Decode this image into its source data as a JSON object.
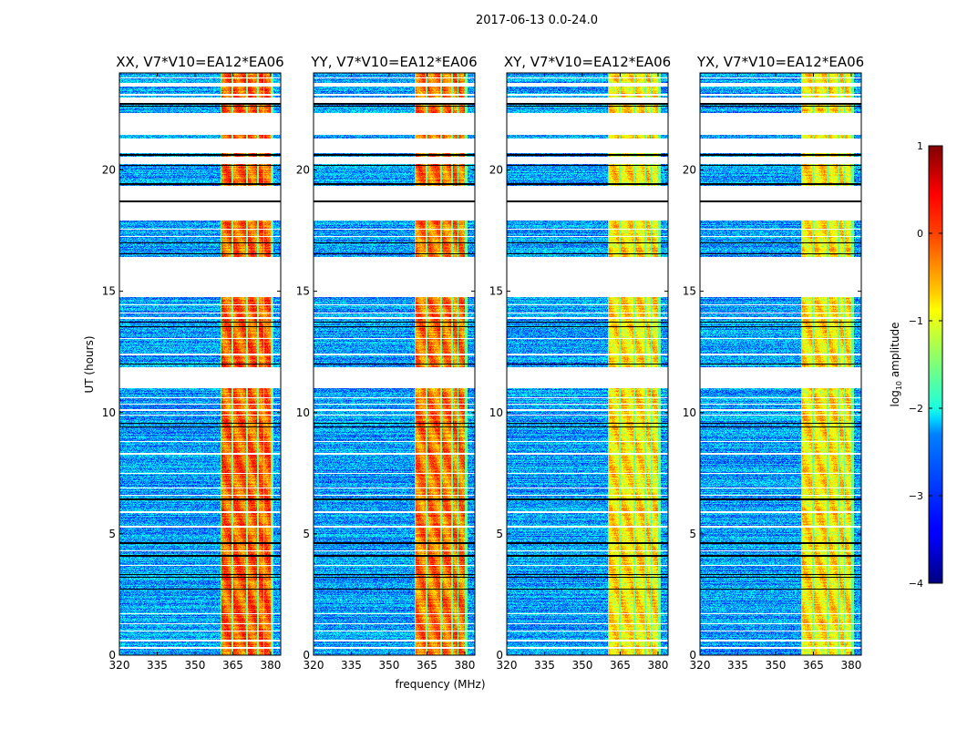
{
  "chart_data": {
    "type": "heatmap",
    "title": "2017-06-13 0.0-24.0",
    "xlabel": "frequency (MHz)",
    "ylabel": "UT (hours)",
    "xlim": [
      320,
      384
    ],
    "ylim": [
      0,
      24
    ],
    "xticks": [
      320,
      335,
      350,
      365,
      380
    ],
    "yticks": [
      0,
      5,
      10,
      15,
      20
    ],
    "panels": [
      {
        "title": "XX, V7*V10=EA12*EA06",
        "rfi_level": -0.1
      },
      {
        "title": "YY, V7*V10=EA12*EA06",
        "rfi_level": -0.2
      },
      {
        "title": "XY, V7*V10=EA12*EA06",
        "rfi_level": -0.75
      },
      {
        "title": "YX, V7*V10=EA12*EA06",
        "rfi_level": -0.75
      }
    ],
    "background_level": -2.6,
    "rfi_band_mhz": [
      [
        360.5,
        364.5
      ],
      [
        365.2,
        370.2
      ],
      [
        370.9,
        374.6
      ],
      [
        375.2,
        377.0
      ],
      [
        377.6,
        380.2
      ]
    ],
    "flagged_ut_ranges": [
      [
        23.45,
        23.6
      ],
      [
        22.75,
        23.0
      ],
      [
        21.45,
        22.35
      ],
      [
        20.7,
        21.3
      ],
      [
        20.25,
        20.55
      ],
      [
        18.75,
        19.35
      ],
      [
        17.9,
        18.7
      ],
      [
        16.1,
        16.4
      ],
      [
        14.75,
        16.1
      ],
      [
        11.0,
        11.85
      ]
    ],
    "black_rows_ut": [
      22.72,
      22.62,
      20.62,
      20.2,
      19.42,
      18.7,
      17.0,
      16.55,
      13.72,
      13.55,
      12.0,
      9.55,
      9.42,
      6.42,
      4.62,
      4.1,
      3.32,
      3.2,
      2.72
    ],
    "white_rows_ut": [
      23.8,
      23.1,
      17.55,
      17.25,
      14.45,
      14.1,
      13.9,
      13.05,
      12.4,
      10.6,
      10.35,
      10.1,
      9.9,
      8.8,
      8.3,
      7.5,
      6.9,
      6.6,
      5.9,
      5.3,
      4.3,
      3.7,
      1.7,
      1.3,
      1.0,
      0.6,
      0.3
    ],
    "colorbar": {
      "label_base": "log",
      "label_sub": "10",
      "label_rest": " amplitude",
      "range": [
        -4,
        1
      ],
      "ticks": [
        -4,
        -3,
        -2,
        -1,
        0,
        1
      ],
      "tick_labels": [
        "−4",
        "−3",
        "−2",
        "−1",
        "0",
        "1"
      ]
    }
  }
}
